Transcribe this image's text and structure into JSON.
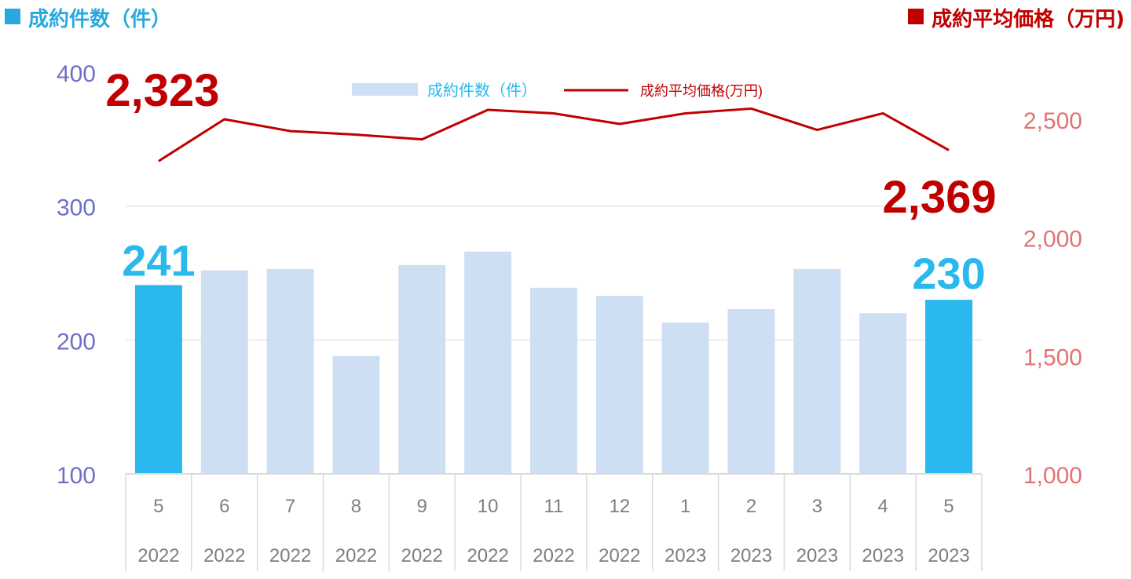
{
  "header": {
    "left_label": "成約件数（件）",
    "right_label": "成約平均価格（万円)"
  },
  "colors": {
    "bar": "#cfdff3",
    "bar_highlight": "#29b9ee",
    "line": "#c00000",
    "left_axis_text": "#6f6fc6",
    "right_axis_text": "#e37373",
    "grid": "#d9d9d9",
    "table_text": "#7f7f7f"
  },
  "chart_data": {
    "type": "bar",
    "categories": [
      "5",
      "6",
      "7",
      "8",
      "9",
      "10",
      "11",
      "12",
      "1",
      "2",
      "3",
      "4",
      "5"
    ],
    "years": [
      "2022",
      "2022",
      "2022",
      "2022",
      "2022",
      "2022",
      "2022",
      "2022",
      "2023",
      "2023",
      "2023",
      "2023",
      "2023"
    ],
    "series": [
      {
        "name": "成約件数（件）",
        "type": "bar",
        "axis": "left",
        "values": [
          241,
          252,
          253,
          188,
          256,
          266,
          239,
          233,
          213,
          223,
          253,
          220,
          230
        ],
        "highlight": [
          0,
          12
        ]
      },
      {
        "name": "成約平均価格(万円)",
        "type": "line",
        "axis": "right",
        "values": [
          2323,
          2500,
          2450,
          2435,
          2415,
          2540,
          2525,
          2480,
          2525,
          2545,
          2455,
          2525,
          2369
        ]
      }
    ],
    "left_axis": {
      "ylim": [
        100,
        400
      ],
      "ticks": [
        "100",
        "200",
        "300",
        "400"
      ]
    },
    "right_axis": {
      "ylim": [
        1000,
        2500
      ],
      "ticks": [
        "1,000",
        "1,500",
        "2,000",
        "2,500"
      ]
    },
    "annotations": {
      "first_bar": "241",
      "last_bar": "230",
      "first_line": "2,323",
      "last_line": "2,369"
    },
    "grid": true,
    "legend_position": "top-center"
  }
}
